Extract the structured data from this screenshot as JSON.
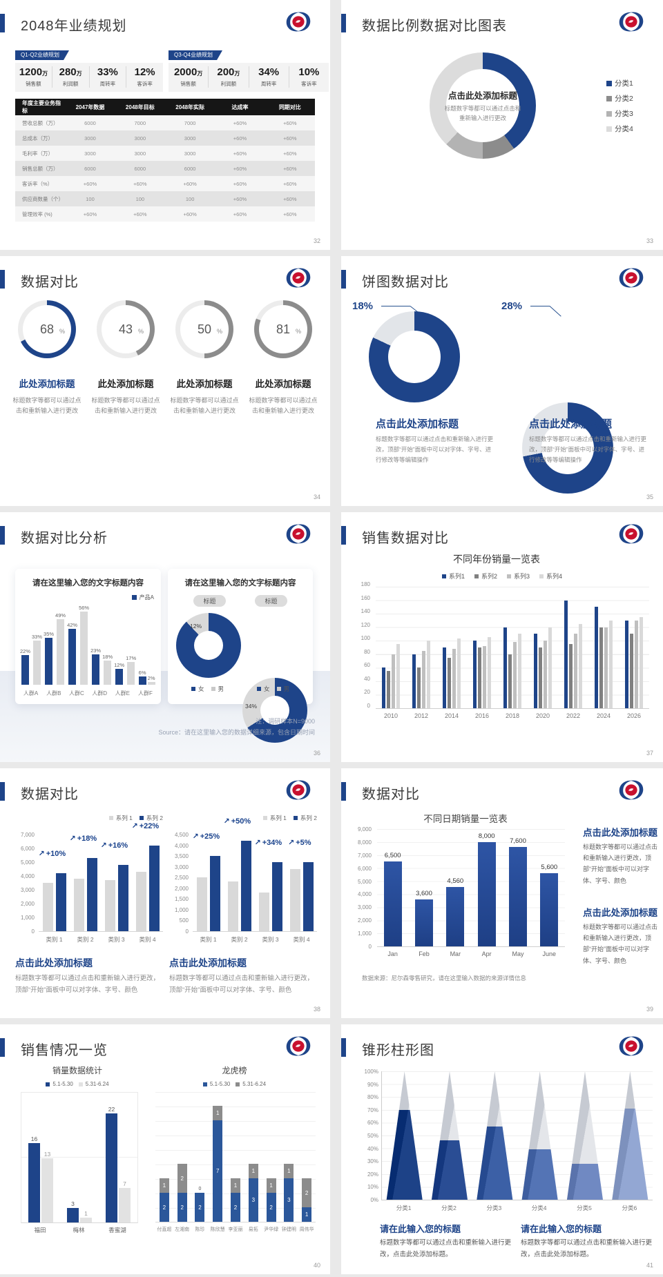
{
  "colors": {
    "accent": "#1e4489",
    "bar_gray": "#d9d9d9",
    "mid_gray": "#8c8c8c",
    "page_bg": "#e9e9e9"
  },
  "slides": {
    "s32": {
      "title": "2048年业绩规划",
      "page": "32",
      "badges": [
        "Q1-Q2业绩规划",
        "Q3-Q4业绩规划"
      ],
      "stat_groups": [
        [
          {
            "num": "1200",
            "suffix": "万",
            "label": "销售额"
          },
          {
            "num": "280",
            "suffix": "万",
            "label": "利润额"
          },
          {
            "num": "33%",
            "suffix": "",
            "label": "周转率"
          },
          {
            "num": "12%",
            "suffix": "",
            "label": "客诉率"
          }
        ],
        [
          {
            "num": "2000",
            "suffix": "万",
            "label": "销售额"
          },
          {
            "num": "200",
            "suffix": "万",
            "label": "利润额"
          },
          {
            "num": "34%",
            "suffix": "",
            "label": "周转率"
          },
          {
            "num": "10%",
            "suffix": "",
            "label": "客诉率"
          }
        ]
      ]
    },
    "s33": {
      "title": "数据比例数据对比图表",
      "page": "33"
    },
    "s34": {
      "title": "数据对比",
      "page": "34",
      "item_title": "此处添加标题",
      "caption": "标题数字等都可以通过点击和重新输入进行更改"
    },
    "s35": {
      "title": "饼图数据对比",
      "page": "35",
      "donut_title": "点击此处添加标题",
      "caption": "标题数字等都可以通过点击和重新输入进行更改，顶部“开始”面板中可以对字体、字号、进行修改等等编辑操作"
    },
    "s36": {
      "title": "数据对比分析",
      "page": "36",
      "card_title": "请在这里输入您的文字标题内容",
      "notes": [
        "注：调研样本N=9000",
        "Source：请在这里输入您的数据详细来源，包含日期时间"
      ]
    },
    "s37": {
      "title": "销售数据对比",
      "page": "37"
    },
    "s38": {
      "title": "数据对比",
      "page": "38",
      "block_title": "点击此处添加标题",
      "caption": "标题数字等都可以通过点击和重新输入进行更改，顶部“开始”面板中可以对字体、字号、颜色"
    },
    "s39": {
      "title": "数据对比",
      "page": "39",
      "block_title": "点击此处添加标题",
      "caption": "标题数字等都可以通过点击和重新输入进行更改，顶部“开始”面板中可以对字体、字号、颜色"
    },
    "s40": {
      "title": "销售情况一览",
      "page": "40"
    },
    "s41": {
      "title": "锥形柱形图",
      "page": "41",
      "block_title": "请在此输入您的标题",
      "caption": "标题数字等都可以通过点击和重新输入进行更改，点击此处添加标题。"
    }
  },
  "chart_data": [
    {
      "id": "s32-table",
      "type": "table",
      "headers": [
        "年度主要业务指标",
        "2047年数据",
        "2048年目标",
        "2048年实际",
        "达成率",
        "同期对比"
      ],
      "rows": [
        [
          "营收总额（万）",
          "6000",
          "7000",
          "7000",
          "+60%",
          "+60%"
        ],
        [
          "总成本（万）",
          "3000",
          "3000",
          "3000",
          "+60%",
          "+60%"
        ],
        [
          "毛利率（万）",
          "3000",
          "3000",
          "3000",
          "+60%",
          "+60%"
        ],
        [
          "销售总额（万）",
          "6000",
          "6000",
          "6000",
          "+60%",
          "+60%"
        ],
        [
          "客诉率（%）",
          "+60%",
          "+60%",
          "+60%",
          "+60%",
          "+60%"
        ],
        [
          "供应商数量（个）",
          "100",
          "100",
          "100",
          "+60%",
          "+60%"
        ],
        [
          "管理效率 (%)",
          "+60%",
          "+60%",
          "+60%",
          "+60%",
          "+60%"
        ]
      ]
    },
    {
      "id": "s33-donut",
      "type": "pie",
      "labels": [
        "分类1",
        "分类2",
        "分类3",
        "分类4"
      ],
      "values": [
        40,
        10,
        12,
        38
      ],
      "colors": [
        "#1e4489",
        "#8c8c8c",
        "#b3b3b3",
        "#dcdcdc"
      ],
      "legend_position": "right",
      "center_title": "点击此处添加标题",
      "center_sub": "标题数字等都可以通过点击和重新输入进行更改"
    },
    {
      "id": "s34-gauges",
      "type": "pie",
      "values": [
        68,
        43,
        50,
        81
      ],
      "labels": [
        "68%",
        "43%",
        "50%",
        "81%"
      ],
      "colors": [
        "#1e4489",
        "#8c8c8c",
        "#8c8c8c",
        "#8c8c8c"
      ]
    },
    {
      "id": "s35-donuts",
      "type": "pie",
      "colors": [
        "#1e4489",
        "#e2e5e9"
      ],
      "series": [
        {
          "name": "饼图1",
          "values": [
            82,
            18
          ],
          "label": "18%"
        },
        {
          "name": "饼图2",
          "values": [
            72,
            28
          ],
          "label": "28%"
        }
      ]
    },
    {
      "id": "s36-bars",
      "type": "bar",
      "categories": [
        "人群A",
        "人群B",
        "人群C",
        "人群D",
        "人群E",
        "人群F"
      ],
      "ylim": [
        0,
        60
      ],
      "series": [
        {
          "name": "产品A",
          "color": "#1e4489",
          "values": [
            22,
            35,
            42,
            23,
            12,
            6
          ],
          "labels": [
            "22%",
            "35%",
            "42%",
            "23%",
            "12%",
            "6%"
          ]
        },
        {
          "name": "",
          "color": "#d9d9d9",
          "values": [
            33,
            49,
            56,
            18,
            17,
            2
          ],
          "labels": [
            "33%",
            "49%",
            "56%",
            "18%",
            "17%",
            "2%"
          ]
        }
      ]
    },
    {
      "id": "s36-donuts",
      "type": "pie",
      "pill": "标题",
      "legend": [
        "女",
        "男"
      ],
      "colors": [
        "#1e4489",
        "#d9d9d9"
      ],
      "series": [
        {
          "name": "标题",
          "values": [
            88,
            12
          ],
          "label": "12%"
        },
        {
          "name": "标题",
          "values": [
            66,
            34
          ],
          "label": "34%"
        }
      ]
    },
    {
      "id": "s37-bars",
      "type": "bar",
      "title": "不同年份销量一览表",
      "ylim": [
        0,
        180
      ],
      "categories": [
        "2010",
        "2012",
        "2014",
        "2016",
        "2018",
        "2020",
        "2022",
        "2024",
        "2026"
      ],
      "yticks": [
        "180",
        "160",
        "140",
        "120",
        "100",
        "80",
        "60",
        "40",
        "20",
        "0"
      ],
      "series": [
        {
          "name": "系列1",
          "color": "#1e4489",
          "values": [
            60,
            80,
            90,
            100,
            120,
            110,
            160,
            150,
            130
          ]
        },
        {
          "name": "系列2",
          "color": "#808080",
          "values": [
            55,
            60,
            75,
            90,
            80,
            90,
            95,
            120,
            110
          ]
        },
        {
          "name": "系列3",
          "color": "#bfbfbf",
          "values": [
            80,
            85,
            88,
            92,
            98,
            100,
            110,
            120,
            130
          ]
        },
        {
          "name": "系列4",
          "color": "#d9d9d9",
          "values": [
            95,
            100,
            103,
            105,
            110,
            120,
            125,
            130,
            135
          ]
        }
      ]
    },
    {
      "id": "s38-left",
      "type": "bar",
      "ylim": [
        0,
        7000
      ],
      "categories": [
        "类别 1",
        "类别 2",
        "类别 3",
        "类别 4"
      ],
      "yticks": [
        "7,000",
        "6,000",
        "5,000",
        "4,000",
        "3,000",
        "2,000",
        "1,000",
        "0"
      ],
      "callouts": [
        "+10%",
        "+18%",
        "+16%",
        "+22%"
      ],
      "series": [
        {
          "name": "系列 1",
          "color": "#d9d9d9",
          "values": [
            3500,
            3800,
            3700,
            4300
          ]
        },
        {
          "name": "系列 2",
          "color": "#1e4489",
          "values": [
            4200,
            5300,
            4800,
            6200
          ]
        }
      ]
    },
    {
      "id": "s38-right",
      "type": "bar",
      "ylim": [
        0,
        4500
      ],
      "categories": [
        "类别 1",
        "类别 2",
        "类别 3",
        "类别 4"
      ],
      "yticks": [
        "4,500",
        "4,000",
        "3,500",
        "3,000",
        "2,500",
        "2,000",
        "1,500",
        "1,000",
        "500",
        "0"
      ],
      "callouts": [
        "+25%",
        "+50%",
        "+34%",
        "+5%"
      ],
      "series": [
        {
          "name": "系列 1",
          "color": "#d9d9d9",
          "values": [
            2500,
            2300,
            1800,
            2900
          ]
        },
        {
          "name": "系列 2",
          "color": "#1e4489",
          "values": [
            3500,
            4200,
            3200,
            3200
          ]
        }
      ]
    },
    {
      "id": "s39-bars",
      "type": "bar",
      "title": "不同日期销量一览表",
      "ylim": [
        0,
        9000
      ],
      "color": "#2b4d9b",
      "categories": [
        "Jan",
        "Feb",
        "Mar",
        "Apr",
        "May",
        "June"
      ],
      "values": [
        6500,
        3600,
        4560,
        8000,
        7600,
        5600
      ],
      "labels": [
        "6,500",
        "3,600",
        "4,560",
        "8,000",
        "7,600",
        "5,600"
      ],
      "yticks": [
        "9,000",
        "8,000",
        "7,000",
        "6,000",
        "5,000",
        "4,000",
        "3,000",
        "2,000",
        "1,000",
        "0"
      ],
      "note": "数据来源：尼尔森零售研究，请在这里输入数据的来源详情信息"
    },
    {
      "id": "s40-left",
      "type": "bar",
      "title": "销量数据统计",
      "ylim": [
        0,
        24
      ],
      "categories": [
        "福田",
        "梅林",
        "香蜜湖"
      ],
      "series": [
        {
          "name": "5.1-5.30",
          "color": "#1e4489",
          "values": [
            16,
            3,
            22
          ]
        },
        {
          "name": "5.31-6.24",
          "color": "#e2e2e2",
          "values": [
            13,
            1,
            7
          ]
        }
      ]
    },
    {
      "id": "s40-right",
      "type": "bar",
      "stacked": true,
      "title": "龙虎榜",
      "ylim": [
        0,
        8
      ],
      "categories": [
        "付直超",
        "左湘南",
        "陈珍",
        "陈欣慧",
        "李亚丽",
        "易拓",
        "尹华绿",
        "钟建明",
        "周伟华"
      ],
      "series": [
        {
          "name": "5.1-5.30",
          "color": "#2b579a",
          "values": [
            2,
            2,
            2,
            7,
            2,
            3,
            2,
            3,
            1
          ]
        },
        {
          "name": "5.31-6.24",
          "color": "#8c8c8c",
          "values": [
            1,
            2,
            0,
            1,
            1,
            1,
            1,
            1,
            2
          ]
        }
      ]
    },
    {
      "id": "s41-cones",
      "type": "bar",
      "categories": [
        "分类1",
        "分类2",
        "分类3",
        "分类4",
        "分类5",
        "分类6"
      ],
      "values": [
        70,
        46,
        57,
        39,
        28,
        71
      ],
      "ylim": [
        0,
        100
      ],
      "yticks": [
        "100%",
        "90%",
        "80%",
        "70%",
        "60%",
        "50%",
        "40%",
        "30%",
        "20%",
        "10%",
        "0%"
      ],
      "colors": [
        "#1d4287",
        "#2a4d94",
        "#3c60a6",
        "#5474b5",
        "#7089c2",
        "#93a7d3"
      ]
    }
  ]
}
